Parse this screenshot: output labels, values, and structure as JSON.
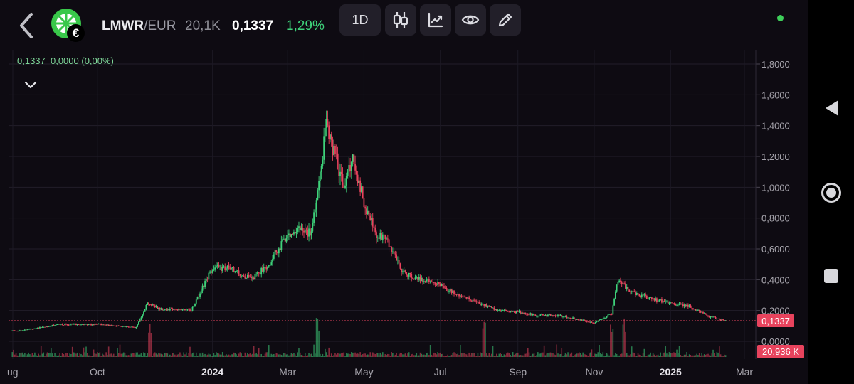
{
  "header": {
    "symbol": "LMWR",
    "quote_suffix": "/EUR",
    "volume": "20,1K",
    "price": "0,1337",
    "change": "1,29%",
    "interval_label": "1D",
    "currency_badge": "€",
    "icons": [
      "back-chevron-icon",
      "lime-logo-icon",
      "candlestick-icon",
      "chart-trend-icon",
      "eye-icon",
      "pencil-icon"
    ]
  },
  "legend": {
    "text": "0,1337  0,0000 (0,00%)"
  },
  "status_dot_color": "#3ecf5a",
  "colors": {
    "up": "#3ed27a",
    "down": "#e8435d",
    "background": "#0e0b12"
  },
  "chart_data": {
    "type": "candlestick",
    "y_axis": {
      "ticks": [
        "1,8000",
        "1,6000",
        "1,4000",
        "1,2000",
        "1,0000",
        "0,8000",
        "0,6000",
        "0,4000",
        "0,2000",
        "0,0000"
      ],
      "range": [
        0,
        1.8
      ]
    },
    "x_axis": {
      "ticks": [
        "ug",
        "Oct",
        "2024",
        "Mar",
        "May",
        "Jul",
        "Sep",
        "Nov",
        "2025",
        "Mar"
      ],
      "bold_ticks": [
        "2024",
        "2025"
      ]
    },
    "last_price_label": "0,1337",
    "last_volume_label": "20,936 K",
    "last_price": 0.1337,
    "series": [
      {
        "x": [
          "2023-08-01",
          "2023-09-01",
          "2023-10-01",
          "2023-11-01",
          "2023-11-10",
          "2023-11-20",
          "2023-12-01",
          "2023-12-15",
          "2024-01-01",
          "2024-01-15",
          "2024-02-01",
          "2024-02-15",
          "2024-03-01",
          "2024-03-10",
          "2024-03-20",
          "2024-04-01",
          "2024-04-08",
          "2024-04-15",
          "2024-04-22",
          "2024-05-01",
          "2024-05-10",
          "2024-05-20",
          "2024-06-01",
          "2024-06-15",
          "2024-07-01",
          "2024-07-15",
          "2024-08-01",
          "2024-08-15",
          "2024-09-01",
          "2024-09-15",
          "2024-10-01",
          "2024-10-15",
          "2024-11-01",
          "2024-11-15",
          "2024-11-20",
          "2024-12-01",
          "2024-12-15",
          "2025-01-01",
          "2025-01-15",
          "2025-02-01",
          "2025-02-10"
        ],
        "values": [
          0.07,
          0.11,
          0.11,
          0.09,
          0.25,
          0.21,
          0.21,
          0.2,
          0.48,
          0.47,
          0.4,
          0.5,
          0.7,
          0.72,
          0.7,
          1.4,
          1.2,
          1.0,
          1.2,
          0.9,
          0.7,
          0.65,
          0.45,
          0.4,
          0.37,
          0.3,
          0.25,
          0.2,
          0.19,
          0.17,
          0.17,
          0.15,
          0.12,
          0.18,
          0.4,
          0.32,
          0.28,
          0.25,
          0.23,
          0.16,
          0.14
        ]
      }
    ]
  }
}
